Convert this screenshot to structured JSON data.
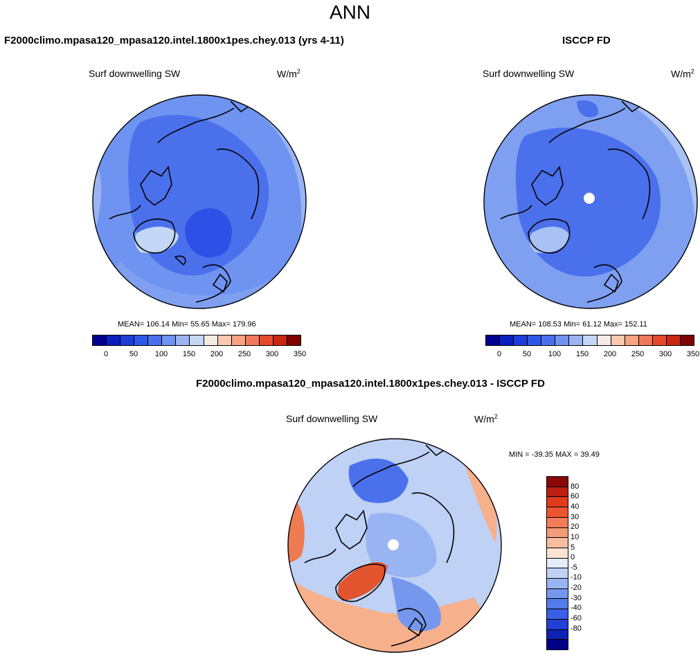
{
  "title": "ANN",
  "panels": [
    {
      "title": "F2000climo.mpasa120_mpasa120.intel.1800x1pes.chey.013 (yrs 4-11)",
      "variable": "Surf downwelling SW",
      "units_base": "W/m",
      "units_exp": "2",
      "stats": "MEAN= 106.14  Min=  55.65  Max= 179.96"
    },
    {
      "title": "ISCCP FD",
      "variable": "Surf downwelling SW",
      "units_base": "W/m",
      "units_exp": "2",
      "stats": "MEAN= 108.53  Min=  61.12  Max= 152.11"
    },
    {
      "title": "F2000climo.mpasa120_mpasa120.intel.1800x1pes.chey.013 - ISCCP FD",
      "variable": "Surf downwelling SW",
      "units_base": "W/m",
      "units_exp": "2",
      "stats": "MIN = -39.35 MAX =  39.49"
    }
  ],
  "colorbar_main": {
    "colors": [
      "#000090",
      "#0a1fbf",
      "#1d3ed8",
      "#3057e6",
      "#4a70ec",
      "#6f93f0",
      "#9ab4f3",
      "#c5d7f7",
      "#f5ece6",
      "#fbc9b0",
      "#f7a384",
      "#f0785b",
      "#e64a2c",
      "#c92712",
      "#7f0000"
    ],
    "ticks": [
      "0",
      "50",
      "100",
      "150",
      "200",
      "250",
      "300",
      "350"
    ]
  },
  "colorbar_diff": {
    "colors": [
      "#8a0808",
      "#bb2010",
      "#dd3a1e",
      "#ed5532",
      "#f27d58",
      "#f39c78",
      "#f7bda0",
      "#fae3d1",
      "#e4edfa",
      "#bfd1f5",
      "#99b4f2",
      "#7597ee",
      "#547bea",
      "#3a5fe3",
      "#243fd5",
      "#1022b4",
      "#000085"
    ],
    "ticks": [
      "80",
      "60",
      "40",
      "30",
      "20",
      "10",
      "5",
      "0",
      "-5",
      "-10",
      "-20",
      "-30",
      "-40",
      "-60",
      "-80"
    ]
  },
  "map_colors": {
    "deep_blue": "#2f50e6",
    "mid_blue": "#4a70ec",
    "light_blue": "#7fa0f1",
    "pale_blue": "#a9c1f4",
    "peach": "#f7b08c",
    "orange": "#ee7b52",
    "dark_orange": "#e2552e",
    "missing": "#ffffff"
  }
}
